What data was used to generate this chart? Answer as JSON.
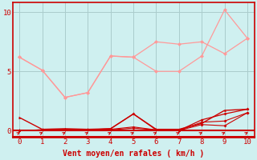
{
  "bg_color": "#cff0f0",
  "xlabel": "Vent moyen/en rafales ( km/h )",
  "xlim": [
    -0.3,
    10.3
  ],
  "ylim": [
    -0.6,
    10.8
  ],
  "yticks": [
    0,
    5,
    10
  ],
  "xticks": [
    0,
    1,
    2,
    3,
    4,
    5,
    6,
    7,
    8,
    9,
    10
  ],
  "line_pink1_x": [
    0,
    1,
    2,
    3,
    4,
    5,
    6,
    7,
    8,
    9,
    10
  ],
  "line_pink1_y": [
    6.2,
    5.1,
    2.8,
    3.2,
    6.3,
    6.2,
    5.0,
    5.0,
    6.3,
    10.2,
    7.8
  ],
  "line_pink2_x": [
    0,
    1,
    2,
    3,
    4,
    5,
    6,
    7,
    8,
    9,
    10
  ],
  "line_pink2_y": [
    6.2,
    5.1,
    2.8,
    3.2,
    6.3,
    6.2,
    7.5,
    7.3,
    7.5,
    6.5,
    7.8
  ],
  "line_red1_x": [
    0,
    1,
    2,
    3,
    4,
    5,
    6,
    7,
    8,
    9,
    10
  ],
  "line_red1_y": [
    1.1,
    0.1,
    0.15,
    0.1,
    0.15,
    1.4,
    0.1,
    0.1,
    0.6,
    1.7,
    1.8
  ],
  "line_red2_x": [
    0,
    1,
    2,
    3,
    4,
    5,
    6,
    7,
    8,
    9,
    10
  ],
  "line_red2_y": [
    0.0,
    0.05,
    0.1,
    0.05,
    0.15,
    1.4,
    0.05,
    0.0,
    0.9,
    1.4,
    1.8
  ],
  "line_red3_x": [
    0,
    1,
    2,
    3,
    4,
    5,
    6,
    7,
    8,
    9,
    10
  ],
  "line_red3_y": [
    0.0,
    0.05,
    0.1,
    0.05,
    0.1,
    0.3,
    0.05,
    0.0,
    0.7,
    0.8,
    1.5
  ],
  "line_red4_x": [
    0,
    1,
    2,
    3,
    4,
    5,
    6,
    7,
    8,
    9,
    10
  ],
  "line_red4_y": [
    0.0,
    0.05,
    0.05,
    0.05,
    0.05,
    0.2,
    0.05,
    0.0,
    0.5,
    0.4,
    1.5
  ],
  "pink_color": "#ff9999",
  "red_color": "#cc0000",
  "axis_color": "#cc0000",
  "grid_color": "#aacccc",
  "xlabel_color": "#cc0000",
  "xlabel_fontsize": 7,
  "tick_fontsize": 6.5
}
